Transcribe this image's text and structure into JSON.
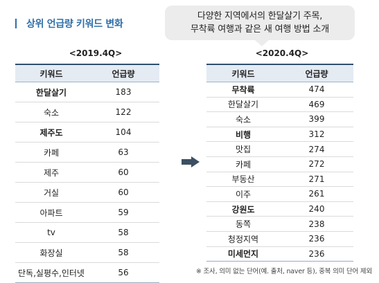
{
  "title": "상위 언급량 키워드 변화",
  "callout": {
    "line1": "다양한 지역에서의 한달살기 주목,",
    "line2": "무착륙 여행과 같은 새 여행 방법 소개"
  },
  "left": {
    "period": "<2019.4Q>",
    "headers": [
      "키워드",
      "언급량"
    ],
    "rows": [
      {
        "keyword": "한달살기",
        "count": "183",
        "bold": true
      },
      {
        "keyword": "숙소",
        "count": "122",
        "bold": false
      },
      {
        "keyword": "제주도",
        "count": "104",
        "bold": true
      },
      {
        "keyword": "카페",
        "count": "63",
        "bold": false
      },
      {
        "keyword": "제주",
        "count": "60",
        "bold": false
      },
      {
        "keyword": "거실",
        "count": "60",
        "bold": false
      },
      {
        "keyword": "아파트",
        "count": "59",
        "bold": false
      },
      {
        "keyword": "tv",
        "count": "58",
        "bold": false
      },
      {
        "keyword": "화장실",
        "count": "58",
        "bold": false
      },
      {
        "keyword": "단독,실평수,인터넷",
        "count": "56",
        "bold": false
      }
    ]
  },
  "right": {
    "period": "<2020.4Q>",
    "headers": [
      "키워드",
      "언급량"
    ],
    "rows": [
      {
        "keyword": "무착륙",
        "count": "474",
        "bold": true
      },
      {
        "keyword": "한달살기",
        "count": "469",
        "bold": false
      },
      {
        "keyword": "숙소",
        "count": "399",
        "bold": false
      },
      {
        "keyword": "비행",
        "count": "312",
        "bold": true
      },
      {
        "keyword": "맛집",
        "count": "274",
        "bold": false
      },
      {
        "keyword": "카페",
        "count": "272",
        "bold": false
      },
      {
        "keyword": "부동산",
        "count": "271",
        "bold": false
      },
      {
        "keyword": "이주",
        "count": "261",
        "bold": false
      },
      {
        "keyword": "강원도",
        "count": "240",
        "bold": true
      },
      {
        "keyword": "동쪽",
        "count": "238",
        "bold": false
      },
      {
        "keyword": "청정지역",
        "count": "236",
        "bold": false
      },
      {
        "keyword": "미세먼지",
        "count": "236",
        "bold": true
      }
    ]
  },
  "icons": {
    "arrow": "right-arrow-icon"
  },
  "colors": {
    "title": "#2f6fa8",
    "header_bg": "#e4ebf3",
    "callout_bg": "#ececec",
    "arrow": "#3c4f63"
  },
  "note": "※ 조사, 의미 없는 단어(예. 출처, naver 등), 중복 의미 단어 제외"
}
